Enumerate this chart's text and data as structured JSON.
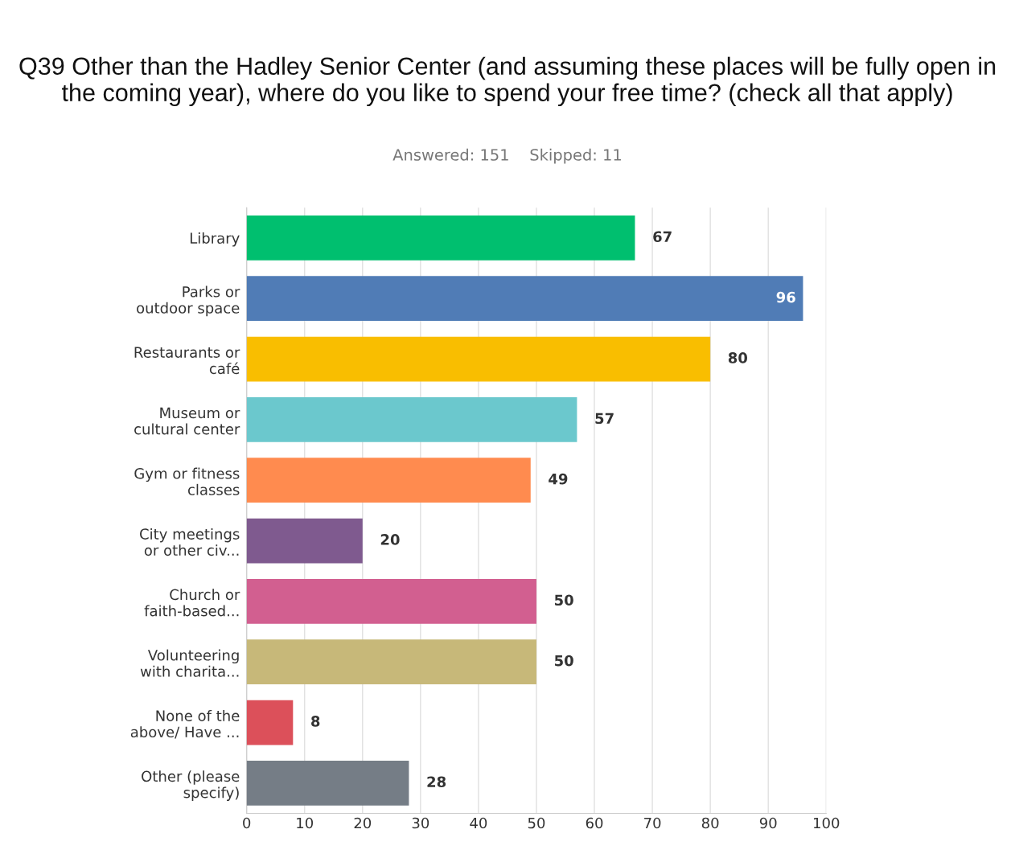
{
  "chart_data": {
    "type": "bar",
    "orientation": "horizontal",
    "title": "Q39 Other than the Hadley Senior Center (and assuming these places will be fully open in the coming year), where do you like to spend your free time? (check all that apply)",
    "subtitle": "Answered: 151    Skipped: 11",
    "categories": [
      "Library",
      "Parks or\noutdoor space",
      "Restaurants or\ncafé",
      "Museum or\ncultural center",
      "Gym or fitness\nclasses",
      "City meetings\nor other civ...",
      "Church or\nfaith-based...",
      "Volunteering\nwith charita...",
      "None of the\nabove/ Have ...",
      "Other (please\nspecify)"
    ],
    "values": [
      67,
      96,
      80,
      57,
      49,
      20,
      50,
      50,
      8,
      28
    ],
    "colors": [
      "#00bf6f",
      "#507cb6",
      "#f9be00",
      "#6bc8cd",
      "#ff8b4f",
      "#7f5a8f",
      "#d25f90",
      "#c7b879",
      "#dc505a",
      "#757d86"
    ],
    "xlim": [
      0,
      100
    ],
    "xticks": [
      0,
      10,
      20,
      30,
      40,
      50,
      60,
      70,
      80,
      90,
      100
    ],
    "grid": "x",
    "data_labels": true
  }
}
